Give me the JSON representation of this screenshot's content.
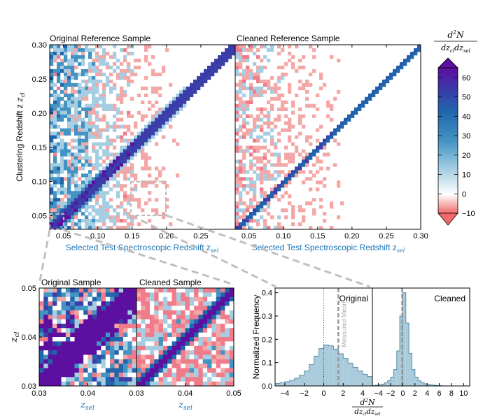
{
  "colors": {
    "deep_purple": "#5d0fa0",
    "purple": "#6b1fb0",
    "blue": "#2166ac",
    "cyan": "#4393c3",
    "light_cyan": "#a6cee3",
    "white": "#ffffff",
    "pink": "#f4a7a7",
    "red": "#e7298a",
    "hist_fill": "#a9cbdc",
    "hist_edge": "#5b8ea8",
    "xlabel_blue": "#1f77b4",
    "zoom_box": "#bbbbbb"
  },
  "chart_data": [
    {
      "type": "heatmap",
      "title": "Original Reference Sample",
      "xlabel": "Selected Test Spectroscopic Redshift z",
      "xlabel_sub": "sel",
      "ylabel": "Clustering Redshift z",
      "ylabel_sub": "cl",
      "xlim": [
        0.03,
        0.3
      ],
      "ylim": [
        0.03,
        0.3
      ],
      "xticks": [
        0.05,
        0.1,
        0.15,
        0.2,
        0.25
      ],
      "xtick_labels": [
        "0.05",
        "0.10",
        "0.15",
        "0.20",
        "0.25"
      ],
      "yticks": [
        0.05,
        0.1,
        0.15,
        0.2,
        0.25,
        0.3
      ],
      "ytick_labels": [
        "0.05",
        "0.10",
        "0.15",
        "0.20",
        "0.25",
        "0.30"
      ],
      "diagonal": "z_cl = z_sel",
      "zoom_box": {
        "x": [
          0.03,
          0.05
        ],
        "y": [
          0.03,
          0.05
        ]
      },
      "hist_box": {
        "x": [
          0.15,
          0.2
        ],
        "y": [
          0.06,
          0.09
        ]
      }
    },
    {
      "type": "heatmap",
      "title": "Cleaned Reference Sample",
      "xlabel": "Selected Test Spectroscopic Redshift z",
      "xlabel_sub": "sel",
      "xlim": [
        0.03,
        0.3
      ],
      "ylim": [
        0.03,
        0.3
      ],
      "xticks": [
        0.05,
        0.1,
        0.15,
        0.2,
        0.25,
        0.3
      ],
      "xtick_labels": [
        "0.05",
        "0.10",
        "0.15",
        "0.20",
        "0.25",
        "0.30"
      ],
      "diagonal": "z_cl = z_sel"
    },
    {
      "type": "colorbar",
      "label_num": "d",
      "label_num_sup": "2",
      "label_num_rest": "N",
      "label_den": "dz",
      "label_den_sub1": "cl",
      "label_den_mid": "dz",
      "label_den_sub2": "sel",
      "range": [
        -10,
        65
      ],
      "ticks": [
        60,
        50,
        40,
        30,
        20,
        10,
        0,
        -10
      ],
      "tick_labels": [
        "60",
        "50",
        "40",
        "30",
        "20",
        "10",
        "0",
        "−10"
      ]
    },
    {
      "type": "heatmap",
      "title": "Original Sample",
      "xlabel": "z",
      "xlabel_sub": "sel",
      "ylabel": "z",
      "ylabel_sub": "cl",
      "xlim": [
        0.03,
        0.05
      ],
      "ylim": [
        0.03,
        0.05
      ],
      "xtick_labels": [
        "0.03",
        "0.04"
      ],
      "ytick_labels": [
        "0.05",
        "0.04",
        "0.03"
      ]
    },
    {
      "type": "heatmap",
      "title": "Cleaned Sample",
      "xlabel": "z",
      "xlabel_sub": "sel",
      "xlim": [
        0.03,
        0.05
      ],
      "ylim": [
        0.03,
        0.05
      ],
      "xtick_labels": [
        "0.03",
        "0.04",
        "0.05"
      ]
    },
    {
      "type": "histogram",
      "title": "Original",
      "ylabel": "Normalized Frequency",
      "xlim": [
        -5,
        5
      ],
      "ylim": [
        0,
        0.42
      ],
      "xtick_labels": [
        "−4",
        "−2",
        "0",
        "2",
        "4"
      ],
      "ytick_labels": [
        "0.0",
        "0.1",
        "0.2",
        "0.3",
        "0.4"
      ],
      "annotation": "Measured Mean",
      "measured_mean": 1.5,
      "bins_x": [
        -5.0,
        -4.5,
        -4.0,
        -3.5,
        -3.0,
        -2.5,
        -2.0,
        -1.5,
        -1.0,
        -0.5,
        0.0,
        0.5,
        1.0,
        1.5,
        2.0,
        2.5,
        3.0,
        3.5,
        4.0,
        4.5
      ],
      "values": [
        0.01,
        0.014,
        0.018,
        0.024,
        0.033,
        0.046,
        0.064,
        0.092,
        0.128,
        0.16,
        0.176,
        0.172,
        0.158,
        0.138,
        0.118,
        0.098,
        0.08,
        0.064,
        0.05,
        0.04
      ]
    },
    {
      "type": "histogram",
      "title": "Cleaned",
      "xlabel": "d²N / dz_cl dz_sel",
      "xlim": [
        -5,
        11
      ],
      "xtick_labels": [
        "−4",
        "−2",
        "0",
        "2",
        "4",
        "6",
        "8",
        "10"
      ],
      "measured_mean": -0.1,
      "bins_x": [
        -5.0,
        -4.5,
        -4.0,
        -3.5,
        -3.0,
        -2.5,
        -2.0,
        -1.5,
        -1.0,
        -0.5,
        0.0,
        0.5,
        1.0,
        1.5,
        2.0,
        2.5,
        3.0,
        3.5,
        4.0,
        4.5,
        5.0,
        5.5,
        6.0
      ],
      "values": [
        0.002,
        0.003,
        0.005,
        0.008,
        0.013,
        0.022,
        0.038,
        0.07,
        0.15,
        0.3,
        0.4,
        0.27,
        0.14,
        0.07,
        0.038,
        0.022,
        0.014,
        0.009,
        0.006,
        0.004,
        0.003,
        0.002,
        0.001
      ]
    }
  ],
  "xlabel_var": "z",
  "zoom_box_label": "",
  "hist_axis_label": {
    "num": "d",
    "num_sup": "2",
    "num_rest": "N",
    "den": "dz",
    "den_sub1": "cl",
    "den_mid": "dz",
    "den_sub2": "sel"
  }
}
